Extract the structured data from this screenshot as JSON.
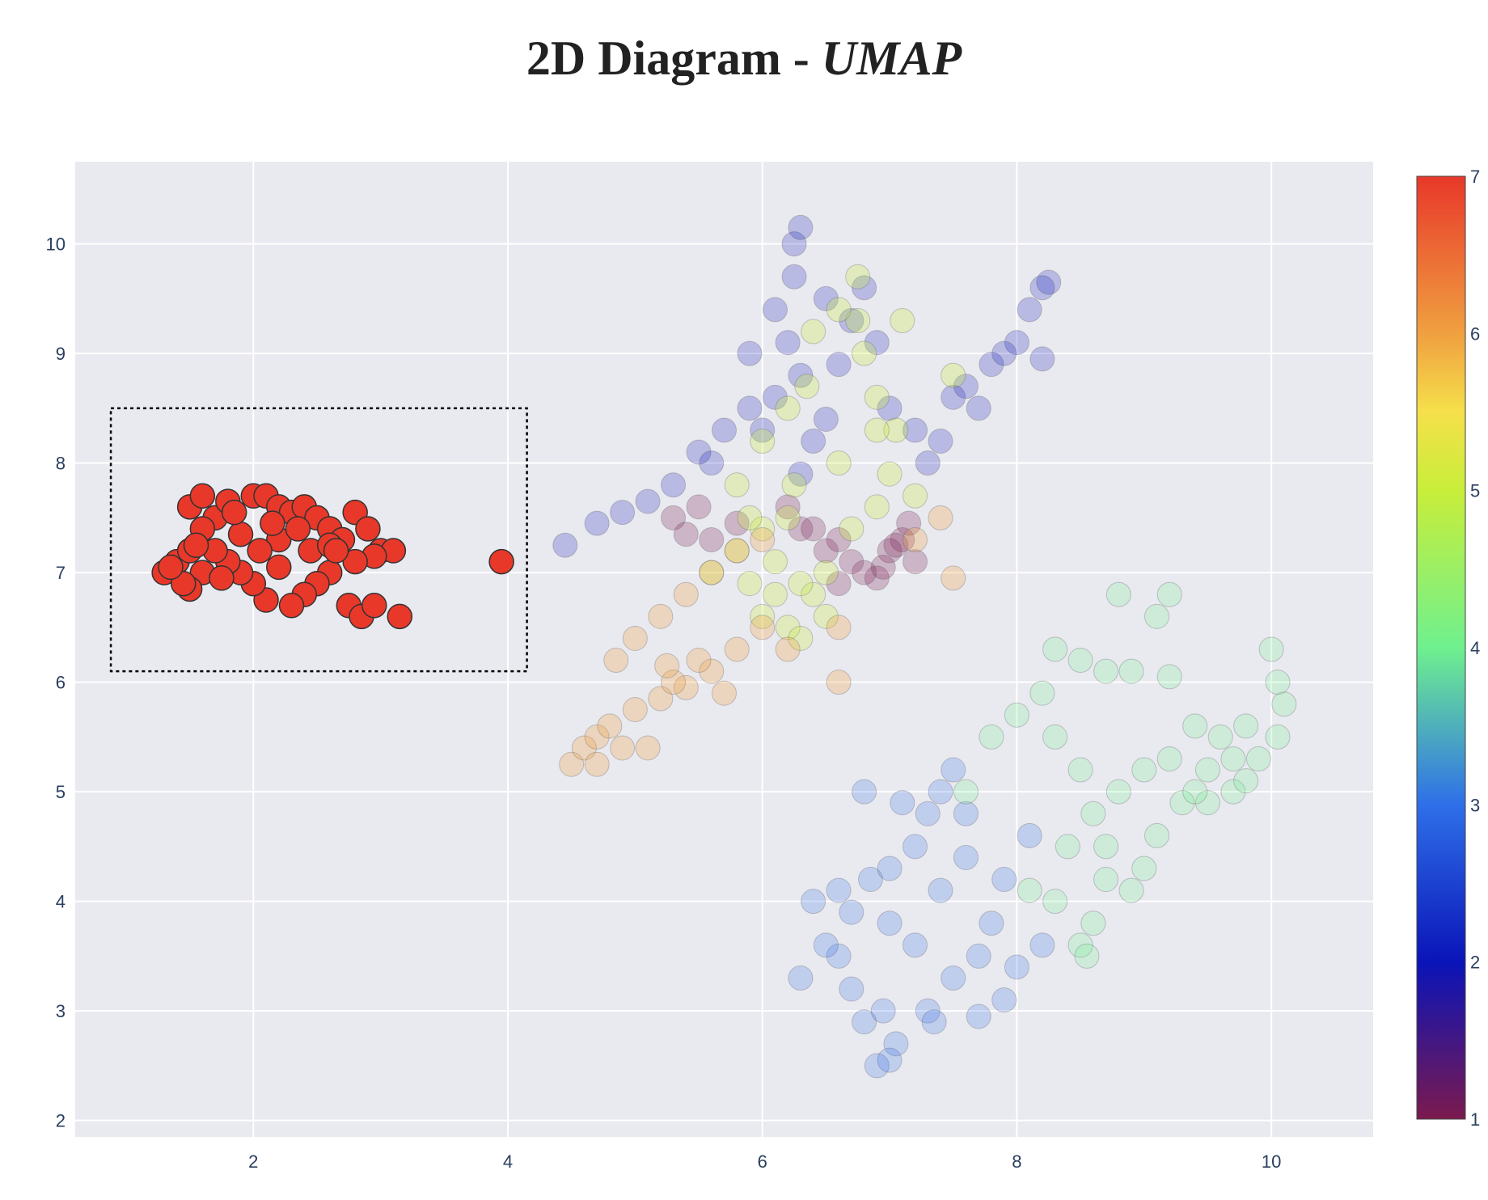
{
  "title": {
    "main": "2D Diagram - ",
    "sub": "UMAP"
  },
  "chart_data": {
    "type": "scatter",
    "title": "2D Diagram - UMAP",
    "xlabel": "",
    "ylabel": "",
    "xlim": [
      0.6,
      10.8
    ],
    "ylim": [
      1.85,
      10.75
    ],
    "x_ticks": [
      2,
      4,
      6,
      8,
      10
    ],
    "y_ticks": [
      2,
      3,
      4,
      5,
      6,
      7,
      8,
      9,
      10
    ],
    "grid": true,
    "plot_background": "#e9e9f0",
    "colorscale": "rainbow-like (1 = maroon, 2 = dark blue, 3 = blue, 4 = light green, 5 = yellow-green, 6 = orange, 7 = red)",
    "colorbar": {
      "min": 1,
      "max": 7,
      "ticks": [
        "1",
        "2",
        "3",
        "4",
        "5",
        "6",
        "7"
      ],
      "position": "right"
    },
    "highlighted_class": 7,
    "selection_box": {
      "x": [
        0.88,
        4.15
      ],
      "y": [
        6.1,
        8.5
      ],
      "style": "dotted"
    },
    "series": [
      {
        "class": 1,
        "color": "#7b1a4e",
        "opacity": 0.25,
        "points": [
          [
            5.3,
            7.5
          ],
          [
            5.5,
            7.6
          ],
          [
            5.6,
            7.3
          ],
          [
            6.4,
            7.4
          ],
          [
            6.6,
            7.3
          ],
          [
            6.8,
            7.0
          ],
          [
            7.0,
            7.2
          ],
          [
            7.1,
            7.3
          ],
          [
            7.2,
            7.1
          ],
          [
            6.9,
            6.95
          ],
          [
            6.7,
            7.1
          ],
          [
            6.5,
            7.2
          ],
          [
            6.3,
            7.4
          ],
          [
            5.8,
            7.45
          ],
          [
            5.4,
            7.35
          ],
          [
            6.2,
            7.6
          ],
          [
            7.15,
            7.45
          ],
          [
            6.95,
            7.05
          ],
          [
            7.05,
            7.25
          ],
          [
            6.6,
            6.9
          ]
        ]
      },
      {
        "class": 2,
        "color": "#0a14b8",
        "opacity": 0.22,
        "points": [
          [
            4.45,
            7.25
          ],
          [
            4.7,
            7.45
          ],
          [
            4.9,
            7.55
          ],
          [
            5.1,
            7.65
          ],
          [
            5.3,
            7.8
          ],
          [
            5.5,
            8.1
          ],
          [
            5.7,
            8.3
          ],
          [
            5.9,
            8.5
          ],
          [
            6.1,
            8.6
          ],
          [
            6.3,
            8.8
          ],
          [
            6.2,
            9.1
          ],
          [
            6.1,
            9.4
          ],
          [
            6.25,
            9.7
          ],
          [
            6.25,
            10.0
          ],
          [
            6.3,
            10.15
          ],
          [
            6.5,
            9.5
          ],
          [
            6.7,
            9.3
          ],
          [
            6.9,
            9.1
          ],
          [
            6.6,
            8.9
          ],
          [
            6.4,
            8.2
          ],
          [
            6.3,
            7.9
          ],
          [
            7.0,
            8.5
          ],
          [
            7.2,
            8.3
          ],
          [
            7.3,
            8.0
          ],
          [
            7.4,
            8.2
          ],
          [
            7.5,
            8.6
          ],
          [
            7.6,
            8.7
          ],
          [
            7.8,
            8.9
          ],
          [
            8.0,
            9.1
          ],
          [
            8.1,
            9.4
          ],
          [
            8.2,
            9.6
          ],
          [
            8.25,
            9.65
          ],
          [
            7.9,
            9.0
          ],
          [
            8.2,
            8.95
          ],
          [
            7.7,
            8.5
          ],
          [
            5.9,
            9.0
          ],
          [
            6.8,
            9.6
          ],
          [
            6.0,
            8.3
          ],
          [
            5.6,
            8.0
          ],
          [
            6.5,
            8.4
          ]
        ]
      },
      {
        "class": 3,
        "color": "#2e6fe8",
        "opacity": 0.22,
        "points": [
          [
            6.9,
            2.5
          ],
          [
            7.0,
            2.55
          ],
          [
            7.05,
            2.7
          ],
          [
            6.8,
            2.9
          ],
          [
            6.7,
            3.2
          ],
          [
            6.6,
            3.5
          ],
          [
            6.5,
            3.6
          ],
          [
            6.7,
            3.9
          ],
          [
            6.85,
            4.2
          ],
          [
            7.0,
            4.3
          ],
          [
            7.2,
            4.5
          ],
          [
            7.3,
            4.8
          ],
          [
            7.4,
            5.0
          ],
          [
            7.5,
            5.2
          ],
          [
            7.1,
            4.9
          ],
          [
            6.8,
            5.0
          ],
          [
            6.6,
            4.1
          ],
          [
            7.2,
            3.6
          ],
          [
            7.3,
            3.0
          ],
          [
            7.5,
            3.3
          ],
          [
            7.7,
            3.5
          ],
          [
            7.9,
            3.1
          ],
          [
            8.0,
            3.4
          ],
          [
            7.8,
            3.8
          ],
          [
            7.9,
            4.2
          ],
          [
            8.1,
            4.6
          ],
          [
            7.6,
            4.4
          ],
          [
            7.0,
            3.8
          ],
          [
            7.4,
            4.1
          ],
          [
            6.4,
            4.0
          ],
          [
            6.3,
            3.3
          ],
          [
            7.35,
            2.9
          ],
          [
            7.7,
            2.95
          ],
          [
            8.2,
            3.6
          ],
          [
            6.95,
            3.0
          ],
          [
            7.6,
            4.8
          ]
        ]
      },
      {
        "class": 4,
        "color": "#6ff08e",
        "opacity": 0.22,
        "points": [
          [
            8.1,
            4.1
          ],
          [
            8.3,
            4.0
          ],
          [
            8.5,
            3.6
          ],
          [
            8.55,
            3.5
          ],
          [
            8.6,
            3.8
          ],
          [
            8.7,
            4.2
          ],
          [
            8.9,
            4.1
          ],
          [
            9.0,
            4.3
          ],
          [
            9.1,
            4.6
          ],
          [
            9.3,
            4.9
          ],
          [
            9.5,
            4.9
          ],
          [
            9.7,
            5.0
          ],
          [
            9.9,
            5.3
          ],
          [
            10.05,
            5.5
          ],
          [
            10.1,
            5.8
          ],
          [
            10.05,
            6.0
          ],
          [
            10.0,
            6.3
          ],
          [
            9.8,
            5.6
          ],
          [
            9.6,
            5.5
          ],
          [
            9.4,
            5.6
          ],
          [
            9.2,
            5.3
          ],
          [
            9.0,
            5.2
          ],
          [
            8.8,
            5.0
          ],
          [
            8.6,
            4.8
          ],
          [
            8.5,
            5.2
          ],
          [
            8.3,
            5.5
          ],
          [
            8.2,
            5.9
          ],
          [
            8.5,
            6.2
          ],
          [
            8.7,
            6.1
          ],
          [
            8.9,
            6.1
          ],
          [
            9.1,
            6.6
          ],
          [
            9.2,
            6.8
          ],
          [
            8.8,
            6.8
          ],
          [
            8.0,
            5.7
          ],
          [
            7.8,
            5.5
          ],
          [
            7.6,
            5.0
          ],
          [
            8.4,
            4.5
          ],
          [
            9.4,
            5.0
          ],
          [
            9.7,
            5.3
          ],
          [
            8.3,
            6.3
          ],
          [
            9.2,
            6.05
          ],
          [
            9.5,
            5.2
          ],
          [
            8.7,
            4.5
          ],
          [
            9.8,
            5.1
          ]
        ]
      },
      {
        "class": 5,
        "color": "#c8ee3a",
        "opacity": 0.28,
        "points": [
          [
            5.6,
            7.0
          ],
          [
            5.8,
            7.2
          ],
          [
            6.0,
            7.4
          ],
          [
            6.2,
            7.5
          ],
          [
            6.1,
            6.8
          ],
          [
            6.0,
            6.6
          ],
          [
            6.2,
            6.5
          ],
          [
            6.4,
            6.8
          ],
          [
            6.5,
            7.0
          ],
          [
            6.7,
            7.4
          ],
          [
            6.9,
            7.6
          ],
          [
            7.0,
            7.9
          ],
          [
            7.05,
            8.3
          ],
          [
            6.9,
            8.6
          ],
          [
            6.8,
            9.0
          ],
          [
            6.75,
            9.3
          ],
          [
            6.75,
            9.7
          ],
          [
            6.6,
            9.4
          ],
          [
            6.4,
            9.2
          ],
          [
            6.35,
            8.7
          ],
          [
            6.2,
            8.5
          ],
          [
            6.0,
            8.2
          ],
          [
            5.8,
            7.8
          ],
          [
            5.9,
            7.5
          ],
          [
            6.1,
            7.1
          ],
          [
            6.3,
            6.9
          ],
          [
            6.5,
            6.6
          ],
          [
            7.2,
            7.7
          ],
          [
            7.5,
            8.8
          ],
          [
            7.1,
            9.3
          ],
          [
            6.9,
            8.3
          ],
          [
            6.6,
            8.0
          ],
          [
            6.25,
            7.8
          ],
          [
            5.9,
            6.9
          ],
          [
            6.3,
            6.4
          ]
        ]
      },
      {
        "class": 6,
        "color": "#f0a040",
        "opacity": 0.28,
        "points": [
          [
            4.5,
            5.25
          ],
          [
            4.6,
            5.4
          ],
          [
            4.7,
            5.5
          ],
          [
            4.8,
            5.6
          ],
          [
            5.0,
            5.75
          ],
          [
            5.2,
            5.85
          ],
          [
            5.4,
            5.95
          ],
          [
            5.6,
            6.1
          ],
          [
            5.8,
            6.3
          ],
          [
            6.0,
            6.5
          ],
          [
            4.85,
            6.2
          ],
          [
            5.0,
            6.4
          ],
          [
            5.2,
            6.6
          ],
          [
            5.4,
            6.8
          ],
          [
            5.6,
            7.0
          ],
          [
            5.8,
            7.2
          ],
          [
            5.5,
            6.2
          ],
          [
            5.3,
            6.0
          ],
          [
            4.9,
            5.4
          ],
          [
            4.7,
            5.25
          ],
          [
            6.2,
            6.3
          ],
          [
            6.6,
            6.5
          ],
          [
            6.6,
            6.0
          ],
          [
            7.2,
            7.3
          ],
          [
            7.4,
            7.5
          ],
          [
            7.5,
            6.95
          ],
          [
            5.7,
            5.9
          ],
          [
            5.1,
            5.4
          ],
          [
            6.0,
            7.3
          ],
          [
            5.25,
            6.15
          ]
        ]
      },
      {
        "class": 7,
        "color": "#e8382a",
        "opacity": 1.0,
        "points": [
          [
            1.3,
            7.0
          ],
          [
            1.4,
            7.1
          ],
          [
            1.5,
            7.2
          ],
          [
            1.5,
            7.6
          ],
          [
            1.6,
            7.7
          ],
          [
            1.7,
            7.5
          ],
          [
            1.8,
            7.65
          ],
          [
            2.0,
            7.7
          ],
          [
            2.1,
            7.7
          ],
          [
            2.2,
            7.6
          ],
          [
            2.3,
            7.55
          ],
          [
            2.4,
            7.6
          ],
          [
            2.5,
            7.5
          ],
          [
            2.6,
            7.4
          ],
          [
            2.7,
            7.3
          ],
          [
            2.8,
            7.55
          ],
          [
            2.9,
            7.4
          ],
          [
            3.0,
            7.2
          ],
          [
            3.1,
            7.2
          ],
          [
            2.95,
            7.15
          ],
          [
            2.8,
            7.1
          ],
          [
            2.6,
            7.0
          ],
          [
            2.5,
            6.9
          ],
          [
            2.4,
            6.8
          ],
          [
            2.3,
            6.7
          ],
          [
            2.1,
            6.75
          ],
          [
            2.0,
            6.9
          ],
          [
            1.9,
            7.0
          ],
          [
            1.8,
            7.1
          ],
          [
            1.7,
            7.2
          ],
          [
            1.6,
            7.0
          ],
          [
            1.5,
            6.85
          ],
          [
            1.45,
            6.9
          ],
          [
            1.35,
            7.05
          ],
          [
            1.6,
            7.4
          ],
          [
            1.9,
            7.35
          ],
          [
            2.2,
            7.3
          ],
          [
            2.45,
            7.2
          ],
          [
            2.6,
            7.25
          ],
          [
            2.75,
            6.7
          ],
          [
            2.85,
            6.6
          ],
          [
            2.95,
            6.7
          ],
          [
            3.15,
            6.6
          ],
          [
            2.2,
            7.05
          ],
          [
            2.05,
            7.2
          ],
          [
            1.75,
            6.95
          ],
          [
            1.55,
            7.25
          ],
          [
            2.35,
            7.4
          ],
          [
            2.65,
            7.2
          ],
          [
            1.85,
            7.55
          ],
          [
            2.15,
            7.45
          ],
          [
            3.95,
            7.1
          ]
        ]
      }
    ]
  }
}
